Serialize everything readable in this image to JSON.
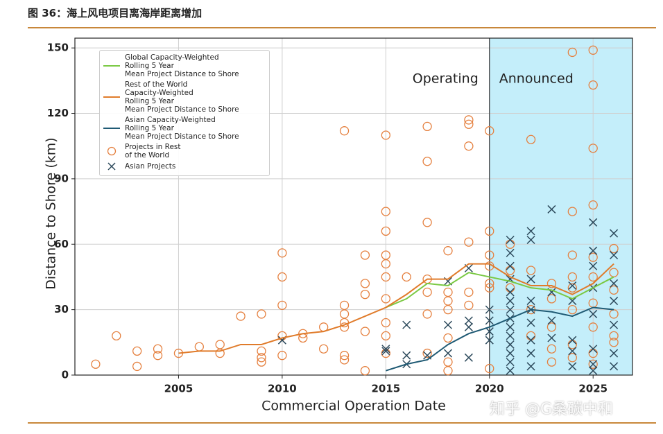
{
  "page_title": "图 36：海上风电项目离海岸距离增加",
  "watermark": "知乎 @G桑碳中和",
  "chart_data": {
    "type": "scatter",
    "xlabel": "Commercial Operation Date",
    "ylabel": "Distance to Shore (km)",
    "xlim": [
      2000,
      2026.9
    ],
    "ylim": [
      0,
      154.5
    ],
    "xticks": [
      2005,
      2010,
      2015,
      2020,
      2025
    ],
    "yticks": [
      0,
      30,
      60,
      90,
      120,
      150
    ],
    "grid": true,
    "shaded_region": {
      "x_start": 2020,
      "color": "#c4eefa"
    },
    "annotations": [
      "Operating",
      "Announced"
    ],
    "legend": "upper left",
    "series": [
      {
        "name": "Global Capacity-Weighted\nRolling 5 Year\nMean Project Distance to Shore",
        "kind": "line",
        "color": "#7ac943",
        "x": [
          2015,
          2016,
          2017,
          2018,
          2019,
          2020,
          2021,
          2022,
          2023,
          2024,
          2025,
          2026
        ],
        "values": [
          31,
          35,
          42,
          41,
          47,
          45,
          43,
          40,
          39,
          35,
          40,
          45
        ]
      },
      {
        "name": "Rest of the World\nCapacity-Weighted\nRolling 5 Year\nMean Project Distance to Shore",
        "kind": "line",
        "color": "#e07b2a",
        "x": [
          2005,
          2006,
          2007,
          2008,
          2009,
          2010,
          2011,
          2012,
          2013,
          2014,
          2015,
          2016,
          2017,
          2018,
          2019,
          2020,
          2021,
          2022,
          2023,
          2024,
          2025,
          2026
        ],
        "values": [
          10,
          11,
          11,
          14,
          14,
          17,
          19,
          20,
          23,
          27,
          31,
          37,
          44,
          44,
          51,
          51,
          45,
          41,
          41,
          37,
          42,
          51
        ]
      },
      {
        "name": "Asian Capacity-Weighted\nRolling 5 Year\nMean Project Distance to Shore",
        "kind": "line",
        "color": "#1f5a74",
        "x": [
          2015,
          2016,
          2017,
          2018,
          2019,
          2020,
          2021,
          2022,
          2023,
          2024,
          2025,
          2026
        ],
        "values": [
          2,
          5,
          7,
          14,
          19,
          22,
          26,
          30,
          29,
          27,
          31,
          30
        ]
      },
      {
        "name": "Projects in Rest\nof the World",
        "kind": "circle",
        "color": "#e5803f",
        "x": [
          2001,
          2002,
          2003,
          2003,
          2004,
          2004,
          2005,
          2006,
          2007,
          2007,
          2008,
          2009,
          2009,
          2009,
          2009,
          2010,
          2010,
          2010,
          2010,
          2010,
          2011,
          2011,
          2012,
          2012,
          2013,
          2013,
          2013,
          2013,
          2013,
          2013,
          2013,
          2014,
          2014,
          2014,
          2014,
          2014,
          2015,
          2015,
          2015,
          2015,
          2015,
          2015,
          2015,
          2015,
          2015,
          2015,
          2016,
          2017,
          2017,
          2017,
          2017,
          2017,
          2017,
          2017,
          2018,
          2018,
          2018,
          2018,
          2018,
          2018,
          2018,
          2019,
          2019,
          2019,
          2019,
          2019,
          2019,
          2020,
          2020,
          2020,
          2020,
          2020,
          2020,
          2020,
          2021,
          2021,
          2021,
          2022,
          2022,
          2022,
          2022,
          2023,
          2023,
          2023,
          2023,
          2023,
          2024,
          2024,
          2024,
          2024,
          2024,
          2024,
          2024,
          2024,
          2025,
          2025,
          2025,
          2025,
          2025,
          2025,
          2025,
          2025,
          2025,
          2025,
          2026,
          2026,
          2026,
          2026,
          2026,
          2026
        ],
        "values": [
          5,
          18,
          4,
          11,
          9,
          12,
          10,
          13,
          10,
          14,
          27,
          6,
          8,
          11,
          28,
          9,
          18,
          32,
          45,
          56,
          17,
          19,
          12,
          22,
          7,
          9,
          22,
          24,
          28,
          32,
          112,
          2,
          20,
          37,
          42,
          55,
          10,
          18,
          24,
          35,
          45,
          51,
          55,
          66,
          75,
          110,
          45,
          10,
          28,
          38,
          44,
          70,
          98,
          114,
          2,
          6,
          17,
          30,
          34,
          38,
          57,
          32,
          38,
          61,
          105,
          115,
          117,
          3,
          40,
          42,
          50,
          55,
          66,
          112,
          40,
          48,
          60,
          18,
          30,
          48,
          108,
          6,
          12,
          22,
          35,
          42,
          8,
          14,
          30,
          40,
          45,
          55,
          75,
          148,
          5,
          10,
          22,
          33,
          45,
          54,
          78,
          104,
          133,
          149,
          15,
          18,
          28,
          39,
          47,
          58
        ]
      },
      {
        "name": "Asian Projects",
        "kind": "cross",
        "color": "#2d4a5c",
        "x": [
          2010,
          2015,
          2015,
          2016,
          2016,
          2016,
          2017,
          2018,
          2018,
          2018,
          2019,
          2019,
          2019,
          2019,
          2020,
          2020,
          2020,
          2020,
          2021,
          2021,
          2021,
          2021,
          2021,
          2021,
          2021,
          2021,
          2021,
          2021,
          2021,
          2021,
          2021,
          2021,
          2022,
          2022,
          2022,
          2022,
          2022,
          2022,
          2022,
          2022,
          2022,
          2023,
          2023,
          2023,
          2023,
          2024,
          2024,
          2024,
          2024,
          2024,
          2025,
          2025,
          2025,
          2025,
          2025,
          2025,
          2025,
          2025,
          2026,
          2026,
          2026,
          2026,
          2026,
          2026,
          2026
        ],
        "values": [
          16,
          12,
          11,
          5,
          9,
          23,
          9,
          23,
          43,
          10,
          8,
          22,
          25,
          49,
          16,
          20,
          25,
          30,
          2,
          6,
          10,
          14,
          18,
          22,
          26,
          30,
          34,
          38,
          44,
          50,
          56,
          62,
          4,
          10,
          16,
          24,
          30,
          34,
          44,
          62,
          66,
          17,
          25,
          38,
          76,
          4,
          11,
          16,
          34,
          41,
          2,
          5,
          12,
          28,
          40,
          50,
          57,
          70,
          4,
          10,
          23,
          34,
          42,
          55,
          65
        ]
      }
    ]
  }
}
